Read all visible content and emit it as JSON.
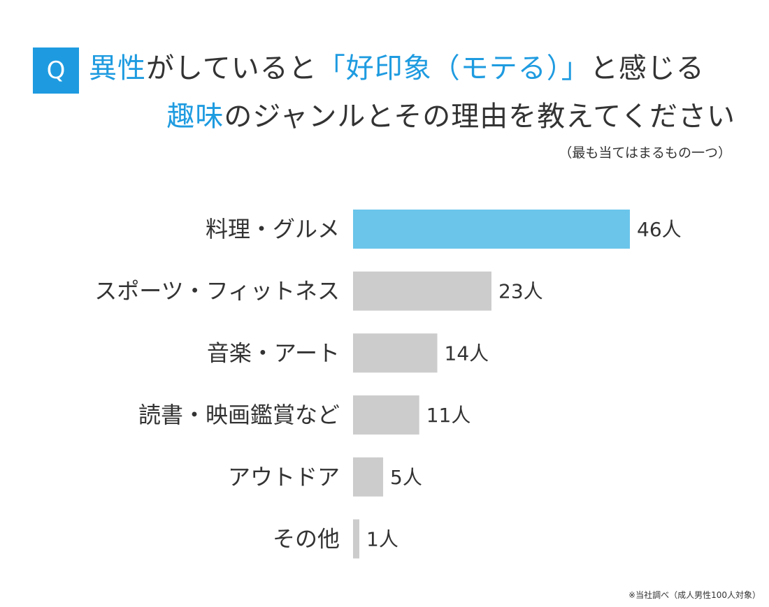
{
  "question": {
    "badge": "Q",
    "line1_hl": "異性",
    "line1_rest": "がしていると",
    "line1_quoted_hl": "「好印象（モテる）」",
    "line1_tail": "と感じる",
    "line2_hl": "趣味",
    "line2_rest": "のジャンルとその理由を教えてください",
    "subnote": "（最も当てはまるもの一つ）"
  },
  "footer": "※当社調べ（成人男性100人対象）",
  "colors": {
    "accent": "#1E9BE0",
    "badge_bg": "#1E9BE0",
    "highlight_bar": "#6BC5EA",
    "bar": "#CCCCCC",
    "text": "#333333"
  },
  "chart_data": {
    "type": "bar",
    "orientation": "horizontal",
    "categories": [
      "料理・グルメ",
      "スポーツ・フィットネス",
      "音楽・アート",
      "読書・映画鑑賞など",
      "アウトドア",
      "その他"
    ],
    "values": [
      46,
      23,
      14,
      11,
      5,
      1
    ],
    "value_labels": [
      "46人",
      "23人",
      "14人",
      "11人",
      "5人",
      "1人"
    ],
    "highlight_index": 0,
    "xlim": [
      0,
      46
    ],
    "grid": false,
    "legend": false
  }
}
